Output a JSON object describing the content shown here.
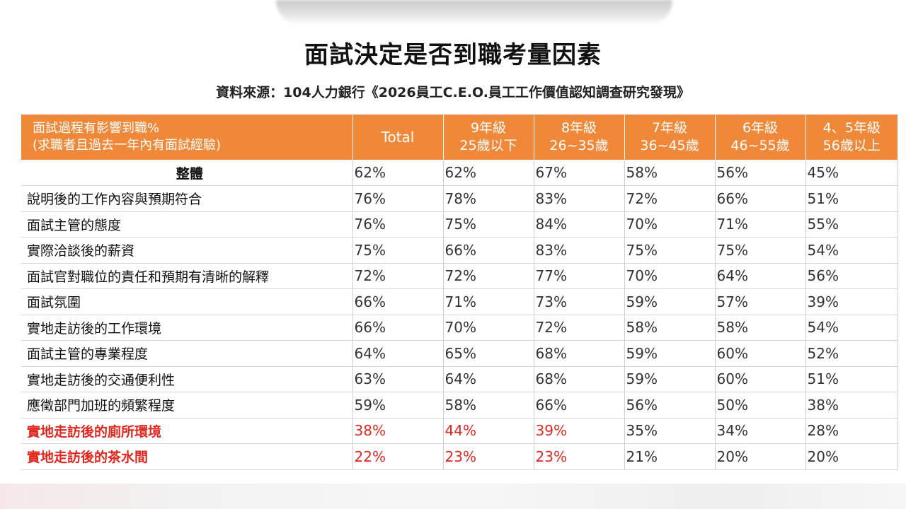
{
  "title": "面試決定是否到職考量因素",
  "subtitle": "資料來源：104人力銀行《2026員工C.E.O.員工工作價值認知調查研究發現》",
  "colors": {
    "header_bg": "#ef8838",
    "highlight_red": "#e0281f"
  },
  "table": {
    "header_label": [
      "面試過程有影響到職%",
      "(求職者且過去一年內有面試經驗)"
    ],
    "columns": [
      {
        "line1": "Total",
        "line2": ""
      },
      {
        "line1": "9年級",
        "line2": "25歲以下"
      },
      {
        "line1": "8年級",
        "line2": "26~35歲"
      },
      {
        "line1": "7年級",
        "line2": "36~45歲"
      },
      {
        "line1": "6年級",
        "line2": "46~55歲"
      },
      {
        "line1": "4、5年級",
        "line2": "56歲以上"
      }
    ],
    "rows": [
      {
        "label": "整體",
        "values": [
          "62%",
          "62%",
          "67%",
          "58%",
          "56%",
          "45%"
        ],
        "overall": true
      },
      {
        "label": "說明後的工作內容與預期符合",
        "values": [
          "76%",
          "78%",
          "83%",
          "72%",
          "66%",
          "51%"
        ]
      },
      {
        "label": "面試主管的態度",
        "values": [
          "76%",
          "75%",
          "84%",
          "70%",
          "71%",
          "55%"
        ]
      },
      {
        "label": "實際洽談後的薪資",
        "values": [
          "75%",
          "66%",
          "83%",
          "75%",
          "75%",
          "54%"
        ]
      },
      {
        "label": "面試官對職位的責任和預期有清晰的解釋",
        "values": [
          "72%",
          "72%",
          "77%",
          "70%",
          "64%",
          "56%"
        ]
      },
      {
        "label": "面試氛圍",
        "values": [
          "66%",
          "71%",
          "73%",
          "59%",
          "57%",
          "39%"
        ]
      },
      {
        "label": "實地走訪後的工作環境",
        "values": [
          "66%",
          "70%",
          "72%",
          "58%",
          "58%",
          "54%"
        ]
      },
      {
        "label": "面試主管的專業程度",
        "values": [
          "64%",
          "65%",
          "68%",
          "59%",
          "60%",
          "52%"
        ]
      },
      {
        "label": "實地走訪後的交通便利性",
        "values": [
          "63%",
          "64%",
          "68%",
          "59%",
          "60%",
          "51%"
        ]
      },
      {
        "label": "應徵部門加班的頻繁程度",
        "values": [
          "59%",
          "58%",
          "66%",
          "56%",
          "50%",
          "38%"
        ]
      },
      {
        "label": "實地走訪後的廁所環境",
        "values": [
          "38%",
          "44%",
          "39%",
          "35%",
          "34%",
          "28%"
        ],
        "label_red": true,
        "red_cols": [
          0,
          1,
          2
        ]
      },
      {
        "label": "實地走訪後的茶水間",
        "values": [
          "22%",
          "23%",
          "23%",
          "21%",
          "20%",
          "20%"
        ],
        "label_red": true,
        "red_cols": [
          0,
          1,
          2
        ]
      }
    ]
  }
}
